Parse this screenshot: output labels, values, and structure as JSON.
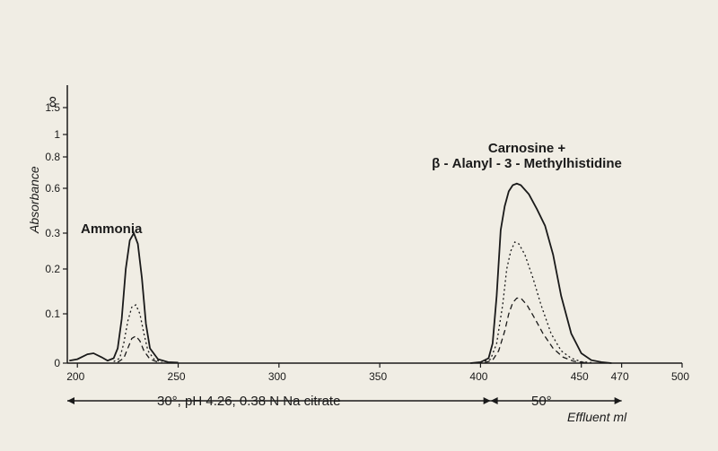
{
  "chart": {
    "type": "line",
    "background_color": "#f0ede4",
    "stroke_color": "#1a1a1a",
    "x": {
      "label": "Effluent ml",
      "min": 195,
      "max": 500,
      "ticks": [
        200,
        250,
        300,
        350,
        400,
        450,
        470,
        500
      ],
      "tick_labels": [
        "200",
        "250",
        "300",
        "350",
        "400",
        "450",
        "470",
        "500"
      ]
    },
    "y": {
      "label": "Absorbance",
      "min": 0,
      "ticks": [
        0,
        0.1,
        0.2,
        0.3,
        0.6,
        0.8,
        1.0,
        1.5
      ],
      "infinity_symbol": "∞"
    },
    "conditions": {
      "zone1": {
        "start": 195,
        "end": 405,
        "text": "30°, pH 4.26, 0.38 N  Na citrate"
      },
      "zone2": {
        "start": 405,
        "end": 470,
        "text": "50°"
      }
    },
    "peak_labels": {
      "ammonia": "Ammonia",
      "carnosine_l1": "Carnosine +",
      "carnosine_l2": "β - Alanyl - 3 - Methylhistidine"
    },
    "series": {
      "solid": {
        "style": "solid",
        "points": [
          [
            196,
            0.005
          ],
          [
            200,
            0.008
          ],
          [
            205,
            0.018
          ],
          [
            208,
            0.02
          ],
          [
            212,
            0.012
          ],
          [
            215,
            0.005
          ],
          [
            218,
            0.01
          ],
          [
            220,
            0.03
          ],
          [
            222,
            0.09
          ],
          [
            224,
            0.2
          ],
          [
            226,
            0.28
          ],
          [
            228,
            0.3
          ],
          [
            230,
            0.27
          ],
          [
            232,
            0.18
          ],
          [
            234,
            0.08
          ],
          [
            236,
            0.03
          ],
          [
            240,
            0.008
          ],
          [
            245,
            0.002
          ],
          [
            250,
            0.001
          ],
          [
            395,
            0.0
          ],
          [
            400,
            0.002
          ],
          [
            404,
            0.01
          ],
          [
            406,
            0.04
          ],
          [
            408,
            0.14
          ],
          [
            410,
            0.32
          ],
          [
            412,
            0.48
          ],
          [
            414,
            0.58
          ],
          [
            416,
            0.62
          ],
          [
            418,
            0.63
          ],
          [
            420,
            0.62
          ],
          [
            424,
            0.56
          ],
          [
            428,
            0.46
          ],
          [
            432,
            0.35
          ],
          [
            436,
            0.24
          ],
          [
            440,
            0.14
          ],
          [
            445,
            0.06
          ],
          [
            450,
            0.02
          ],
          [
            455,
            0.006
          ],
          [
            460,
            0.002
          ],
          [
            465,
            0.0
          ]
        ]
      },
      "dotted": {
        "style": "dotted",
        "points": [
          [
            218,
            0.003
          ],
          [
            221,
            0.01
          ],
          [
            223,
            0.04
          ],
          [
            225,
            0.085
          ],
          [
            227,
            0.115
          ],
          [
            229,
            0.12
          ],
          [
            231,
            0.1
          ],
          [
            233,
            0.06
          ],
          [
            235,
            0.025
          ],
          [
            238,
            0.008
          ],
          [
            242,
            0.002
          ],
          [
            400,
            0.001
          ],
          [
            405,
            0.008
          ],
          [
            408,
            0.04
          ],
          [
            411,
            0.12
          ],
          [
            413,
            0.2
          ],
          [
            415,
            0.25
          ],
          [
            417,
            0.275
          ],
          [
            419,
            0.27
          ],
          [
            422,
            0.24
          ],
          [
            426,
            0.18
          ],
          [
            430,
            0.12
          ],
          [
            435,
            0.06
          ],
          [
            440,
            0.025
          ],
          [
            445,
            0.01
          ],
          [
            450,
            0.003
          ],
          [
            455,
            0.001
          ]
        ]
      },
      "dashed": {
        "style": "dashed",
        "points": [
          [
            220,
            0.002
          ],
          [
            223,
            0.01
          ],
          [
            225,
            0.03
          ],
          [
            227,
            0.05
          ],
          [
            229,
            0.055
          ],
          [
            231,
            0.045
          ],
          [
            233,
            0.025
          ],
          [
            236,
            0.008
          ],
          [
            240,
            0.002
          ],
          [
            402,
            0.001
          ],
          [
            406,
            0.006
          ],
          [
            409,
            0.025
          ],
          [
            412,
            0.065
          ],
          [
            414,
            0.1
          ],
          [
            416,
            0.125
          ],
          [
            418,
            0.135
          ],
          [
            420,
            0.135
          ],
          [
            423,
            0.12
          ],
          [
            427,
            0.09
          ],
          [
            431,
            0.06
          ],
          [
            436,
            0.03
          ],
          [
            441,
            0.012
          ],
          [
            446,
            0.004
          ],
          [
            452,
            0.001
          ]
        ]
      }
    }
  }
}
